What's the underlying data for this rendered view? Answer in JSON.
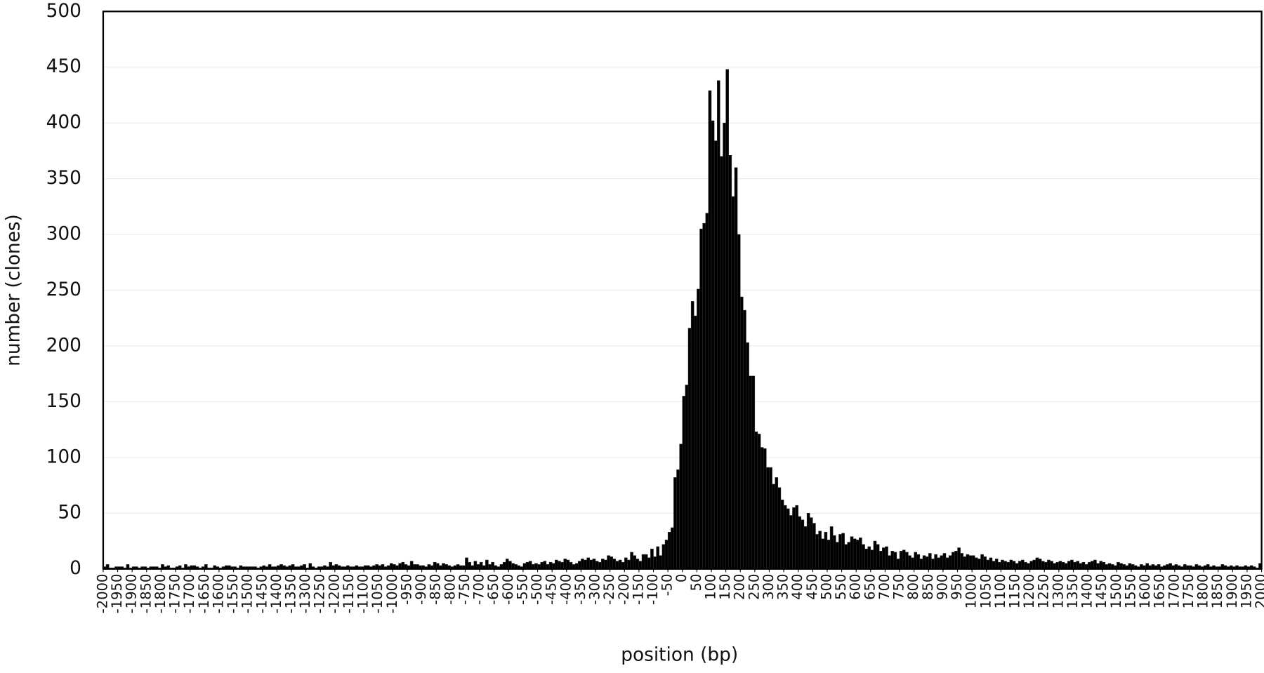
{
  "chart_data": {
    "type": "histogram",
    "xlabel": "position (bp)",
    "ylabel": "number (clones)",
    "color": "#000000",
    "xlim": [
      -2000,
      2000
    ],
    "ylim": [
      0,
      500
    ],
    "yticks": [
      0,
      50,
      100,
      150,
      200,
      250,
      300,
      350,
      400,
      450,
      500
    ],
    "xticks": [
      -2000,
      -1950,
      -1900,
      -1850,
      -1800,
      -1750,
      -1700,
      -1650,
      -1600,
      -1550,
      -1500,
      -1450,
      -1400,
      -1350,
      -1300,
      -1250,
      -1200,
      -1150,
      -1100,
      -1050,
      -1000,
      -950,
      -900,
      -850,
      -800,
      -750,
      -700,
      -650,
      -600,
      -550,
      -500,
      -450,
      -400,
      -350,
      -300,
      -250,
      -200,
      -150,
      -100,
      -50,
      0,
      50,
      100,
      150,
      200,
      250,
      300,
      350,
      400,
      450,
      500,
      550,
      600,
      650,
      700,
      750,
      800,
      850,
      900,
      950,
      1000,
      1050,
      1100,
      1150,
      1200,
      1250,
      1300,
      1350,
      1400,
      1450,
      1500,
      1550,
      1600,
      1650,
      1700,
      1750,
      1800,
      1850,
      1900,
      1950,
      2000
    ],
    "grid": true,
    "bins": [
      -2000,
      -1990,
      -1980,
      -1970,
      -1960,
      -1950,
      -1940,
      -1930,
      -1920,
      -1910,
      -1900,
      -1890,
      -1880,
      -1870,
      -1860,
      -1850,
      -1840,
      -1830,
      -1820,
      -1810,
      -1800,
      -1790,
      -1780,
      -1770,
      -1760,
      -1750,
      -1740,
      -1730,
      -1720,
      -1710,
      -1700,
      -1690,
      -1680,
      -1670,
      -1660,
      -1650,
      -1640,
      -1630,
      -1620,
      -1610,
      -1600,
      -1590,
      -1580,
      -1570,
      -1560,
      -1550,
      -1540,
      -1530,
      -1520,
      -1510,
      -1500,
      -1490,
      -1480,
      -1470,
      -1460,
      -1450,
      -1440,
      -1430,
      -1420,
      -1410,
      -1400,
      -1390,
      -1380,
      -1370,
      -1360,
      -1350,
      -1340,
      -1330,
      -1320,
      -1310,
      -1300,
      -1290,
      -1280,
      -1270,
      -1260,
      -1250,
      -1240,
      -1230,
      -1220,
      -1210,
      -1200,
      -1190,
      -1180,
      -1170,
      -1160,
      -1150,
      -1140,
      -1130,
      -1120,
      -1110,
      -1100,
      -1090,
      -1080,
      -1070,
      -1060,
      -1050,
      -1040,
      -1030,
      -1020,
      -1010,
      -1000,
      -990,
      -980,
      -970,
      -960,
      -950,
      -940,
      -930,
      -920,
      -910,
      -900,
      -890,
      -880,
      -870,
      -860,
      -850,
      -840,
      -830,
      -820,
      -810,
      -800,
      -790,
      -780,
      -770,
      -760,
      -750,
      -740,
      -730,
      -720,
      -710,
      -700,
      -690,
      -680,
      -670,
      -660,
      -650,
      -640,
      -630,
      -620,
      -610,
      -600,
      -590,
      -580,
      -570,
      -560,
      -550,
      -540,
      -530,
      -520,
      -510,
      -500,
      -490,
      -480,
      -470,
      -460,
      -450,
      -440,
      -430,
      -420,
      -410,
      -400,
      -390,
      -380,
      -370,
      -360,
      -350,
      -340,
      -330,
      -320,
      -310,
      -300,
      -290,
      -280,
      -270,
      -260,
      -250,
      -240,
      -230,
      -220,
      -210,
      -200,
      -190,
      -180,
      -170,
      -160,
      -150,
      -140,
      -130,
      -120,
      -110,
      -100,
      -90,
      -80,
      -70,
      -60,
      -50,
      -40,
      -30,
      -20,
      -10,
      0,
      10,
      20,
      30,
      40,
      50,
      60,
      70,
      80,
      90,
      100,
      110,
      120,
      130,
      140,
      150,
      160,
      170,
      180,
      190,
      200,
      210,
      220,
      230,
      240,
      250,
      260,
      270,
      280,
      290,
      300,
      310,
      320,
      330,
      340,
      350,
      360,
      370,
      380,
      390,
      400,
      410,
      420,
      430,
      440,
      450,
      460,
      470,
      480,
      490,
      500,
      510,
      520,
      530,
      540,
      550,
      560,
      570,
      580,
      590,
      600,
      610,
      620,
      630,
      640,
      650,
      660,
      670,
      680,
      690,
      700,
      710,
      720,
      730,
      740,
      750,
      760,
      770,
      780,
      790,
      800,
      810,
      820,
      830,
      840,
      850,
      860,
      870,
      880,
      890,
      900,
      910,
      920,
      930,
      940,
      950,
      960,
      970,
      980,
      990,
      1000,
      1010,
      1020,
      1030,
      1040,
      1050,
      1060,
      1070,
      1080,
      1090,
      1100,
      1110,
      1120,
      1130,
      1140,
      1150,
      1160,
      1170,
      1180,
      1190,
      1200,
      1210,
      1220,
      1230,
      1240,
      1250,
      1260,
      1270,
      1280,
      1290,
      1300,
      1310,
      1320,
      1330,
      1340,
      1350,
      1360,
      1370,
      1380,
      1390,
      1400,
      1410,
      1420,
      1430,
      1440,
      1450,
      1460,
      1470,
      1480,
      1490,
      1500,
      1510,
      1520,
      1530,
      1540,
      1550,
      1560,
      1570,
      1580,
      1590,
      1600,
      1610,
      1620,
      1630,
      1640,
      1650,
      1660,
      1670,
      1680,
      1690,
      1700,
      1710,
      1720,
      1730,
      1740,
      1750,
      1760,
      1770,
      1780,
      1790,
      1800,
      1810,
      1820,
      1830,
      1840,
      1850,
      1860,
      1870,
      1880,
      1890,
      1900,
      1910,
      1920,
      1930,
      1940,
      1950,
      1960,
      1970,
      1980,
      1990,
      2000
    ],
    "values": [
      2,
      4,
      1,
      1,
      2,
      2,
      2,
      1,
      4,
      1,
      2,
      2,
      1,
      2,
      2,
      1,
      2,
      2,
      2,
      1,
      4,
      2,
      3,
      1,
      1,
      2,
      3,
      1,
      4,
      2,
      3,
      3,
      2,
      1,
      2,
      4,
      1,
      1,
      3,
      2,
      1,
      2,
      3,
      3,
      2,
      2,
      1,
      3,
      2,
      2,
      2,
      2,
      2,
      1,
      2,
      3,
      2,
      4,
      2,
      2,
      3,
      4,
      3,
      2,
      3,
      4,
      2,
      2,
      3,
      4,
      1,
      5,
      2,
      1,
      2,
      2,
      3,
      2,
      6,
      3,
      4,
      3,
      2,
      2,
      3,
      2,
      2,
      3,
      2,
      2,
      3,
      3,
      2,
      3,
      4,
      3,
      4,
      2,
      3,
      5,
      4,
      3,
      5,
      6,
      4,
      3,
      7,
      4,
      4,
      3,
      3,
      2,
      4,
      3,
      6,
      5,
      3,
      5,
      4,
      3,
      2,
      3,
      4,
      3,
      3,
      10,
      6,
      3,
      7,
      4,
      6,
      3,
      8,
      4,
      6,
      3,
      2,
      4,
      6,
      9,
      7,
      5,
      4,
      3,
      2,
      5,
      6,
      7,
      4,
      5,
      4,
      6,
      7,
      4,
      6,
      5,
      8,
      7,
      6,
      9,
      8,
      6,
      4,
      5,
      7,
      9,
      8,
      10,
      8,
      9,
      7,
      6,
      9,
      8,
      12,
      11,
      9,
      7,
      8,
      6,
      10,
      8,
      15,
      12,
      9,
      7,
      13,
      13,
      10,
      18,
      11,
      20,
      12,
      22,
      26,
      33,
      37,
      82,
      89,
      112,
      155,
      165,
      216,
      240,
      227,
      251,
      305,
      310,
      319,
      429,
      402,
      384,
      438,
      370,
      400,
      448,
      371,
      334,
      360,
      300,
      244,
      232,
      203,
      173,
      173,
      123,
      121,
      109,
      108,
      91,
      91,
      76,
      82,
      73,
      62,
      57,
      54,
      48,
      55,
      57,
      47,
      44,
      38,
      50,
      46,
      41,
      31,
      34,
      27,
      33,
      26,
      38,
      30,
      24,
      31,
      32,
      22,
      24,
      29,
      27,
      26,
      28,
      22,
      18,
      20,
      17,
      25,
      22,
      16,
      19,
      20,
      12,
      16,
      15,
      9,
      16,
      17,
      15,
      12,
      10,
      15,
      13,
      9,
      12,
      11,
      14,
      9,
      13,
      10,
      12,
      14,
      10,
      12,
      15,
      16,
      19,
      14,
      11,
      13,
      12,
      12,
      10,
      9,
      13,
      11,
      8,
      10,
      7,
      9,
      6,
      8,
      7,
      6,
      8,
      7,
      5,
      7,
      8,
      6,
      5,
      7,
      8,
      10,
      9,
      7,
      6,
      8,
      7,
      5,
      6,
      7,
      6,
      5,
      7,
      8,
      6,
      7,
      5,
      6,
      4,
      6,
      7,
      8,
      5,
      7,
      6,
      4,
      5,
      4,
      3,
      6,
      5,
      4,
      3,
      5,
      4,
      3,
      2,
      4,
      3,
      5,
      3,
      4,
      3,
      4,
      2,
      3,
      4,
      5,
      3,
      4,
      3,
      2,
      4,
      3,
      3,
      2,
      4,
      3,
      2,
      3,
      4,
      2,
      3,
      2,
      2,
      4,
      3,
      2,
      3,
      2,
      3,
      2,
      2,
      3,
      2,
      3,
      2,
      1,
      5
    ]
  }
}
